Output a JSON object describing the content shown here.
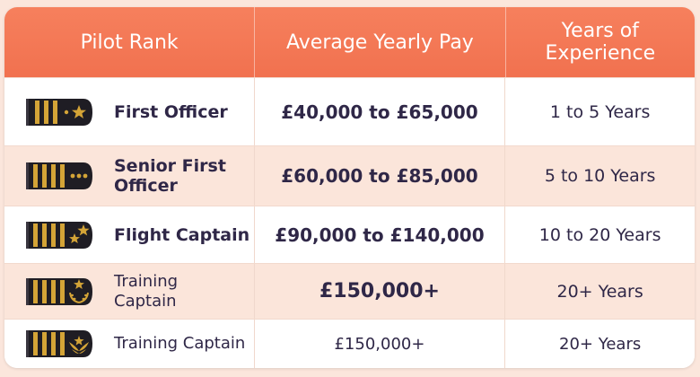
{
  "header": {
    "col_rank": "Pilot Rank",
    "col_pay": "Average Yearly Pay",
    "col_experience_line1": "Years of",
    "col_experience_line2": "Experience"
  },
  "colors": {
    "header_bg": "#f1714f",
    "row_alt_bg": "#fbe5da",
    "text": "#2f2747",
    "epaulette": "#1f1d24",
    "gold": "#d4a437"
  },
  "rows": [
    {
      "rank_line1": "First Officer",
      "rank_line2": "",
      "pay": "£40,000 to £65,000",
      "experience": "1 to 5 Years",
      "insignia": "epaulette-2-stripes-star-icon"
    },
    {
      "rank_line1": "Senior First",
      "rank_line2": "Officer",
      "pay": "£60,000 to £85,000",
      "experience": "5 to 10 Years",
      "insignia": "epaulette-4-stripes-dots-icon"
    },
    {
      "rank_line1": "Flight Captain",
      "rank_line2": "",
      "pay": "£90,000 to £140,000",
      "experience": "10 to 20 Years",
      "insignia": "epaulette-4-stripes-two-stars-icon"
    },
    {
      "rank_line1": "Training",
      "rank_line2": "Captain",
      "pay": "£150,000+",
      "experience": "20+ Years",
      "insignia": "epaulette-4-stripes-star-wreath-icon"
    },
    {
      "rank_line1": "Training Captain",
      "rank_line2": "",
      "pay": "£150,000+",
      "experience": "20+ Years",
      "insignia": "epaulette-4-stripes-eagle-wings-icon"
    }
  ]
}
